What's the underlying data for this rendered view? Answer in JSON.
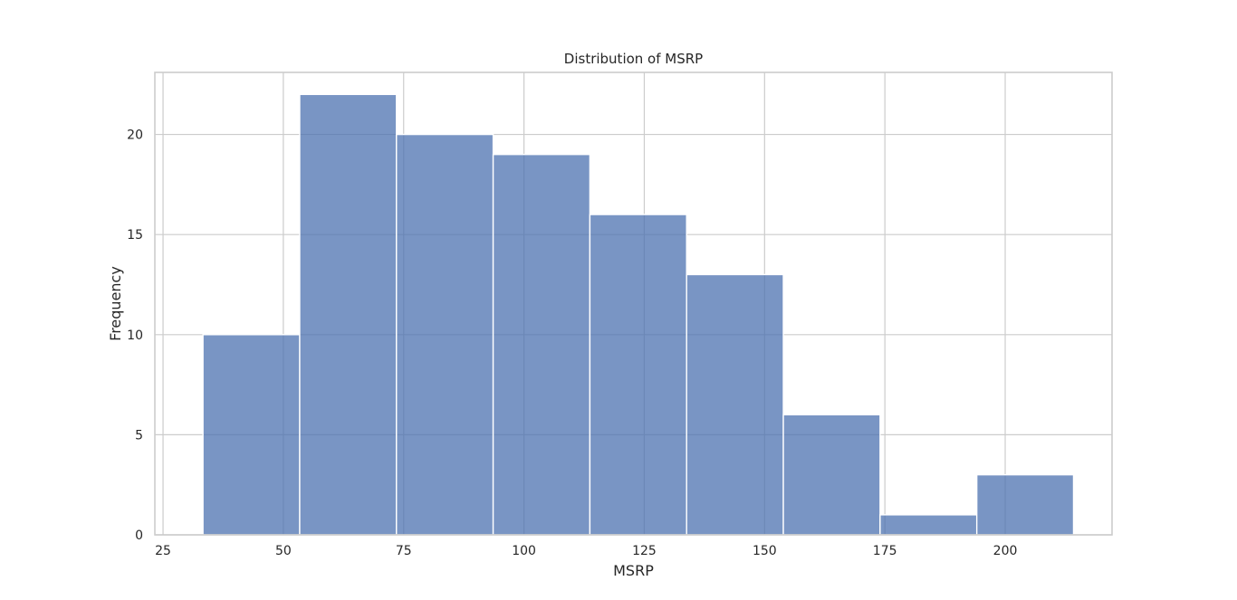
{
  "chart_data": {
    "type": "bar",
    "subtype": "histogram",
    "title": "Distribution of MSRP",
    "xlabel": "MSRP",
    "ylabel": "Frequency",
    "xlim": [
      23.3,
      222.2
    ],
    "ylim": [
      0,
      23.1
    ],
    "xticks": [
      25,
      50,
      75,
      100,
      125,
      150,
      175,
      200
    ],
    "yticks": [
      0,
      5,
      10,
      15,
      20
    ],
    "grid": true,
    "bin_edges": [
      33.3,
      53.4,
      73.5,
      93.6,
      113.7,
      133.8,
      153.9,
      174.0,
      194.1,
      214.2
    ],
    "values": [
      10,
      22,
      20,
      19,
      16,
      13,
      6,
      1,
      3
    ],
    "bar_color": "#4c72b0",
    "bar_opacity": 0.75
  }
}
